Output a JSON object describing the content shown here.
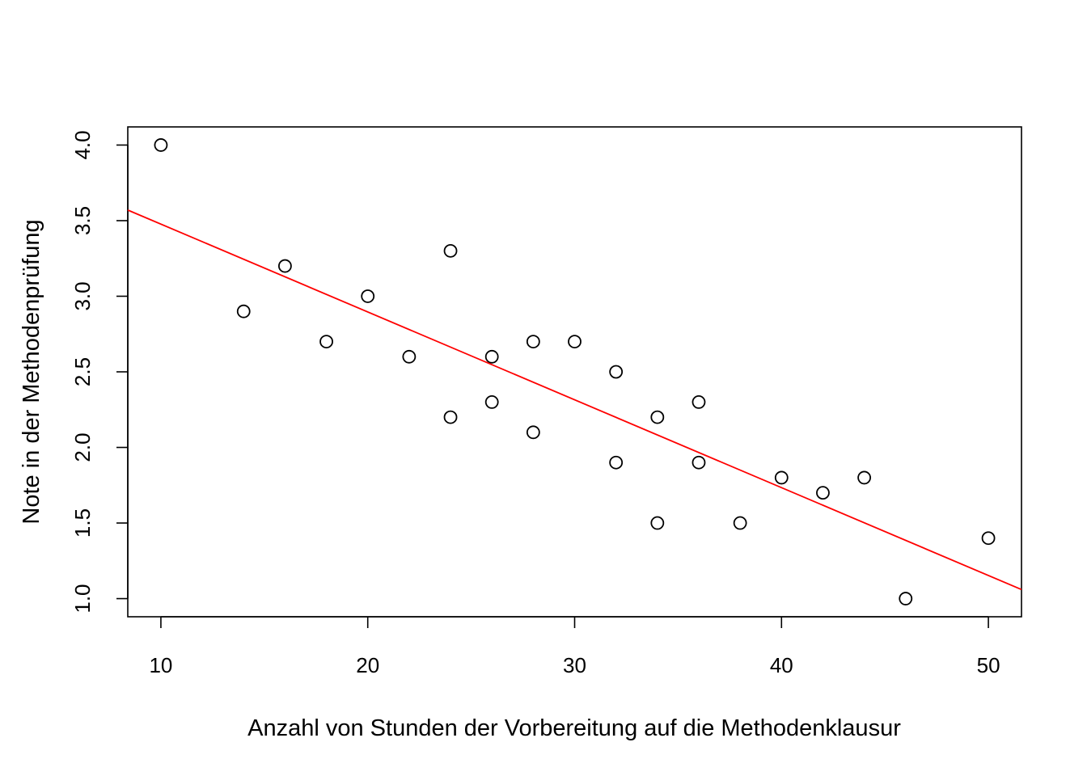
{
  "chart_data": {
    "type": "scatter",
    "title": "",
    "xlabel": "Anzahl von Stunden der Vorbereitung auf die Methodenklausur",
    "ylabel": "Note in der Methodenprüfung",
    "xlim": [
      8.4,
      51.6
    ],
    "ylim": [
      0.88,
      4.12
    ],
    "xticks": [
      10,
      20,
      30,
      40,
      50
    ],
    "yticks": [
      1.0,
      1.5,
      2.0,
      2.5,
      3.0,
      3.5,
      4.0
    ],
    "xtick_labels": [
      "10",
      "20",
      "30",
      "40",
      "50"
    ],
    "ytick_labels": [
      "1.0",
      "1.5",
      "2.0",
      "2.5",
      "3.0",
      "3.5",
      "4.0"
    ],
    "grid": false,
    "legend": "none",
    "points": [
      {
        "x": 10,
        "y": 4.0
      },
      {
        "x": 14,
        "y": 2.9
      },
      {
        "x": 16,
        "y": 3.2
      },
      {
        "x": 18,
        "y": 2.7
      },
      {
        "x": 20,
        "y": 3.0
      },
      {
        "x": 22,
        "y": 2.6
      },
      {
        "x": 24,
        "y": 3.3
      },
      {
        "x": 24,
        "y": 2.2
      },
      {
        "x": 26,
        "y": 2.6
      },
      {
        "x": 26,
        "y": 2.3
      },
      {
        "x": 28,
        "y": 2.7
      },
      {
        "x": 28,
        "y": 2.1
      },
      {
        "x": 30,
        "y": 2.7
      },
      {
        "x": 32,
        "y": 2.5
      },
      {
        "x": 32,
        "y": 1.9
      },
      {
        "x": 34,
        "y": 2.2
      },
      {
        "x": 34,
        "y": 1.5
      },
      {
        "x": 36,
        "y": 2.3
      },
      {
        "x": 36,
        "y": 1.9
      },
      {
        "x": 38,
        "y": 1.5
      },
      {
        "x": 40,
        "y": 1.8
      },
      {
        "x": 42,
        "y": 1.7
      },
      {
        "x": 44,
        "y": 1.8
      },
      {
        "x": 46,
        "y": 1.0
      },
      {
        "x": 50,
        "y": 1.4
      }
    ],
    "regression_line": {
      "color": "#ff0000",
      "from": {
        "x": 8.4,
        "y": 3.57
      },
      "to": {
        "x": 51.6,
        "y": 1.06
      }
    },
    "point_color": "#000000"
  }
}
